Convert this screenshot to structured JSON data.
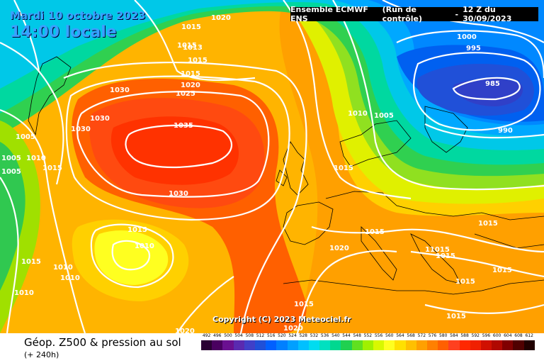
{
  "header": {
    "date": "Mardi 10 octobre 2023",
    "local_time": "14:00 locale",
    "model": "Ensemble ECMWF ENS",
    "run_type": "(Run de contrôle)",
    "run_separator": "-",
    "run_time": "12 Z du 30/09/2023"
  },
  "copyright": "Copyright (C) 2023 Meteociel.fr",
  "footer": {
    "title": "Géop. Z500 & pression au sol",
    "subtitle": "(+ 240h)"
  },
  "legend": {
    "labels": [
      "492",
      "496",
      "500",
      "504",
      "508",
      "512",
      "516",
      "520",
      "524",
      "528",
      "532",
      "536",
      "540",
      "544",
      "548",
      "552",
      "556",
      "560",
      "564",
      "568",
      "572",
      "576",
      "580",
      "584",
      "588",
      "592",
      "596",
      "600",
      "604",
      "608",
      "612"
    ],
    "colors": [
      "#2a0033",
      "#4a0060",
      "#6a1090",
      "#5a2ab0",
      "#4040c8",
      "#2050d8",
      "#0060ff",
      "#0080ff",
      "#00a0ff",
      "#00c0ff",
      "#00dcf0",
      "#00e0c0",
      "#00d890",
      "#20d050",
      "#60e020",
      "#a0f000",
      "#d8f800",
      "#ffff20",
      "#ffe000",
      "#ffc000",
      "#ffa000",
      "#ff8000",
      "#ff6000",
      "#ff4020",
      "#ff2800",
      "#f02000",
      "#d01000",
      "#b00800",
      "#800000",
      "#500000",
      "#200000"
    ]
  },
  "isobars": [
    "1020",
    "1015",
    "1013",
    "1015",
    "1015",
    "1015",
    "1020",
    "1025",
    "1030",
    "1030",
    "1030",
    "1035",
    "1030",
    "1005",
    "1005",
    "1010",
    "1015",
    "1005",
    "1015",
    "1010",
    "1010",
    "1010",
    "1015",
    "1010",
    "1000",
    "995",
    "985",
    "990",
    "1010",
    "1005",
    "1015",
    "1015",
    "1020",
    "1015",
    "11015",
    "1015",
    "1015",
    "1015",
    "1015",
    "1015",
    "1020",
    "1020"
  ],
  "colors": {
    "background": "#ffffff",
    "isobar_line": "#ffffff",
    "header_text": "#3aa0ff",
    "model_box": "#000000"
  }
}
